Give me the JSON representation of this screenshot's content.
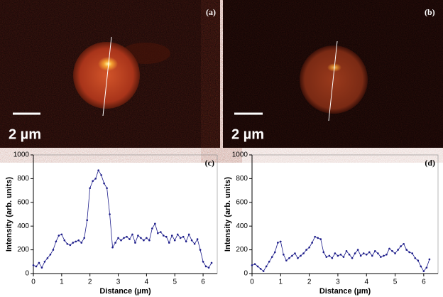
{
  "panels": [
    {
      "label": "(a)",
      "scale_bar": "2 µm"
    },
    {
      "label": "(b)",
      "scale_bar": "2 µm"
    }
  ],
  "chart_data": [
    {
      "type": "line",
      "annotation": "(c)",
      "x_label": "Distance (µm)",
      "y_label": "Intensity (arb. units)",
      "x": [
        0,
        0.1,
        0.2,
        0.3,
        0.4,
        0.5,
        0.6,
        0.7,
        0.8,
        0.9,
        1.0,
        1.1,
        1.2,
        1.3,
        1.4,
        1.5,
        1.6,
        1.7,
        1.8,
        1.9,
        2.0,
        2.1,
        2.2,
        2.3,
        2.4,
        2.5,
        2.6,
        2.7,
        2.8,
        2.9,
        3.0,
        3.1,
        3.2,
        3.3,
        3.4,
        3.5,
        3.6,
        3.7,
        3.8,
        3.9,
        4.0,
        4.1,
        4.2,
        4.3,
        4.4,
        4.5,
        4.6,
        4.7,
        4.8,
        4.9,
        5.0,
        5.1,
        5.2,
        5.3,
        5.4,
        5.5,
        5.6,
        5.7,
        5.8,
        5.9,
        6.0,
        6.1,
        6.2,
        6.3
      ],
      "series": [
        {
          "color": "#1c1c8a",
          "values": [
            70,
            60,
            90,
            50,
            100,
            130,
            160,
            200,
            270,
            320,
            330,
            280,
            250,
            240,
            260,
            270,
            280,
            260,
            300,
            450,
            720,
            780,
            800,
            870,
            830,
            760,
            720,
            500,
            220,
            260,
            300,
            280,
            300,
            310,
            290,
            330,
            260,
            320,
            300,
            280,
            300,
            280,
            380,
            420,
            340,
            350,
            320,
            310,
            260,
            320,
            280,
            330,
            300,
            310,
            270,
            330,
            280,
            250,
            290,
            200,
            100,
            60,
            50,
            90
          ]
        }
      ],
      "xlim": [
        0,
        6.5
      ],
      "xticks": [
        0,
        1,
        2,
        3,
        4,
        5,
        6
      ],
      "ylim": [
        0,
        1000
      ],
      "yticks": [
        0,
        200,
        400,
        600,
        800,
        1000
      ]
    },
    {
      "type": "line",
      "annotation": "(d)",
      "x_label": "Distance (µm)",
      "y_label": "Intensity (arb. units)",
      "x": [
        0,
        0.1,
        0.2,
        0.3,
        0.4,
        0.5,
        0.6,
        0.7,
        0.8,
        0.9,
        1.0,
        1.1,
        1.2,
        1.3,
        1.4,
        1.5,
        1.6,
        1.7,
        1.8,
        1.9,
        2.0,
        2.1,
        2.2,
        2.3,
        2.4,
        2.5,
        2.6,
        2.7,
        2.8,
        2.9,
        3.0,
        3.1,
        3.2,
        3.3,
        3.4,
        3.5,
        3.6,
        3.7,
        3.8,
        3.9,
        4.0,
        4.1,
        4.2,
        4.3,
        4.4,
        4.5,
        4.6,
        4.7,
        4.8,
        4.9,
        5.0,
        5.1,
        5.2,
        5.3,
        5.4,
        5.5,
        5.6,
        5.7,
        5.8,
        5.9,
        6.0,
        6.1,
        6.2
      ],
      "series": [
        {
          "color": "#1c1c8a",
          "values": [
            70,
            80,
            60,
            40,
            20,
            60,
            100,
            140,
            180,
            260,
            270,
            160,
            110,
            130,
            150,
            170,
            130,
            150,
            170,
            200,
            220,
            260,
            310,
            300,
            290,
            180,
            140,
            150,
            130,
            170,
            150,
            160,
            140,
            190,
            160,
            130,
            170,
            200,
            150,
            170,
            160,
            180,
            150,
            190,
            170,
            140,
            150,
            160,
            210,
            190,
            170,
            200,
            230,
            250,
            200,
            180,
            170,
            130,
            110,
            60,
            20,
            50,
            120
          ]
        }
      ],
      "xlim": [
        0,
        6.5
      ],
      "xticks": [
        0,
        1,
        2,
        3,
        4,
        5,
        6
      ],
      "ylim": [
        0,
        1000
      ],
      "yticks": [
        0,
        200,
        400,
        600,
        800,
        1000
      ]
    }
  ]
}
